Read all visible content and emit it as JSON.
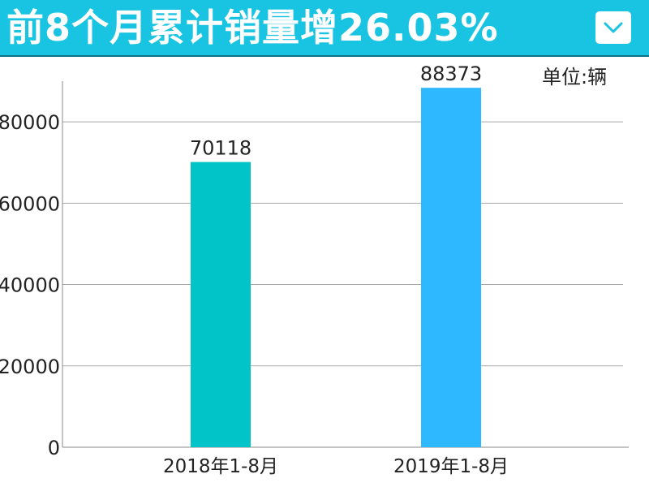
{
  "header": {
    "title": "前8个月累计销量增26.03%",
    "toggle_icon": "chevron-down-icon",
    "background": "#18c4e2"
  },
  "unit_label": "单位:辆",
  "chart_data": {
    "type": "bar",
    "title": "前8个月累计销量增26.03%",
    "categories": [
      "2018年1-8月",
      "2019年1-8月"
    ],
    "values": [
      70118,
      88373
    ],
    "data_labels": [
      "70118",
      "88373"
    ],
    "bar_colors": [
      "#00c4c8",
      "#2db8ff"
    ],
    "y_ticks": [
      "0",
      "20000",
      "40000",
      "60000",
      "80000"
    ],
    "ylim": [
      0,
      90000
    ],
    "grid": true,
    "xlabel": "",
    "ylabel": ""
  }
}
